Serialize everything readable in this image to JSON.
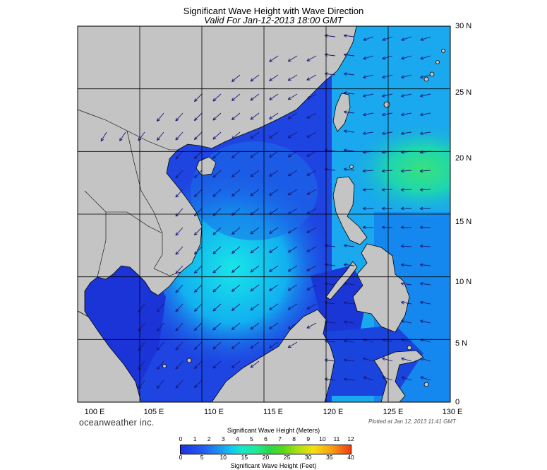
{
  "title": "Significant Wave Height with Wave Direction",
  "subtitle": "Valid For Jan-12-2013 18:00 GMT",
  "lat_labels": [
    "30 N",
    "25 N",
    "20 N",
    "15 N",
    "10 N",
    "5 N",
    "0"
  ],
  "lon_labels": [
    "100 E",
    "105 E",
    "110 E",
    "115 E",
    "120 E",
    "125 E",
    "130 E"
  ],
  "brand": "oceanweather inc.",
  "plotted": "Plotted at Jan 12, 2013 11:41 GMT",
  "colorbar": {
    "title_meters": "Significant Wave Height (Meters)",
    "title_feet": "Significant Wave Height (Feet)",
    "meter_ticks": [
      "0",
      "1",
      "2",
      "3",
      "4",
      "5",
      "6",
      "7",
      "8",
      "9",
      "10",
      "11",
      "12"
    ],
    "feet_ticks": [
      "0",
      "5",
      "10",
      "15",
      "20",
      "25",
      "30",
      "35",
      "40"
    ]
  },
  "colors": {
    "land": "#c4c4c4",
    "ocean_low": "#1e3ee0",
    "ocean_mid": "#1496ee",
    "ocean_high": "#18e6d2",
    "ocean_peak": "#2fe482",
    "arrow": "#1a1a78"
  },
  "map_extent": {
    "lon": [
      100,
      130
    ],
    "lat": [
      0,
      30
    ],
    "grid_step_deg": 5
  }
}
